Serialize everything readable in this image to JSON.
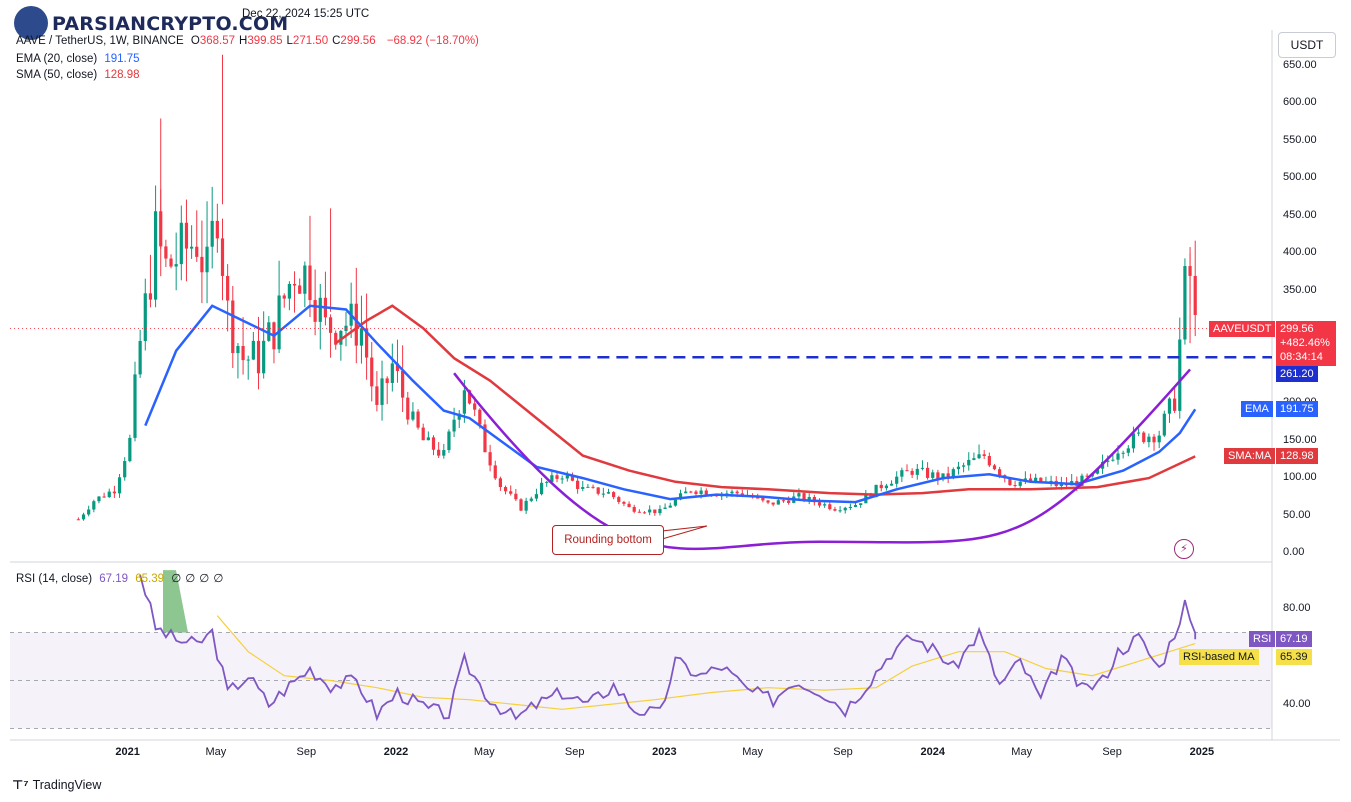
{
  "watermark": {
    "brand": "PARSIANCRYPTO.COM"
  },
  "header": {
    "date": "Dec 22, 2024 15:25 UTC",
    "symbol_line": "AAVE / TetherUS, 1W, BINANCE",
    "ohlc": [
      {
        "k": "O",
        "v": "368.57",
        "color": "#f23645"
      },
      {
        "k": "H",
        "v": "399.85",
        "color": "#f23645"
      },
      {
        "k": "L",
        "v": "271.50",
        "color": "#f23645"
      },
      {
        "k": "C",
        "v": "299.56",
        "color": "#f23645"
      }
    ],
    "change": "−68.92 (−18.70%)",
    "ema_label": "EMA (20, close)",
    "ema_value": "191.75",
    "sma_label": "SMA (50, close)",
    "sma_value": "128.98"
  },
  "rsi_header": {
    "label": "RSI (14, close)",
    "rsi": "67.19",
    "ma": "65.39",
    "extras": [
      "∅",
      "∅",
      "∅",
      "∅"
    ]
  },
  "currency": "USDT",
  "annotation": {
    "text": "Rounding bottom"
  },
  "colors": {
    "up": "#089981",
    "down": "#f23645",
    "ema": "#2962ff",
    "sma": "#e0393e",
    "arc": "#8a1fd6",
    "rsi": "#7e57c2",
    "rsi_ma": "#f5d03b"
  },
  "tags": {
    "symbol": "AAVEUSDT",
    "price": "299.56",
    "change_pct": "+482.46%",
    "countdown": "08:34:14",
    "level": "261.20",
    "ema_name": "EMA",
    "ema": "191.75",
    "sma_name": "SMA:MA",
    "sma": "128.98",
    "rsi_name": "RSI",
    "rsi": "67.19",
    "rsi_ma_name": "RSI-based MA",
    "rsi_ma": "65.39"
  },
  "chart_data": {
    "type": "candlestick",
    "price_axis": {
      "ticks": [
        "650.00",
        "600.00",
        "550.00",
        "500.00",
        "450.00",
        "400.00",
        "350.00",
        "300.00",
        "200.00",
        "150.00",
        "100.00",
        "50.00",
        "0.00"
      ],
      "ylim": [
        0,
        690
      ]
    },
    "rsi_axis": {
      "ticks": [
        "80.00",
        "40.00"
      ],
      "bands": [
        70,
        50,
        30
      ]
    },
    "time_axis": {
      "labels": [
        {
          "t": "2021",
          "year": true
        },
        {
          "t": "May",
          "year": false
        },
        {
          "t": "Sep",
          "year": false
        },
        {
          "t": "2022",
          "year": true
        },
        {
          "t": "May",
          "year": false
        },
        {
          "t": "Sep",
          "year": false
        },
        {
          "t": "2023",
          "year": true
        },
        {
          "t": "May",
          "year": false
        },
        {
          "t": "Sep",
          "year": false
        },
        {
          "t": "2024",
          "year": true
        },
        {
          "t": "May",
          "year": false
        },
        {
          "t": "Sep",
          "year": false
        },
        {
          "t": "2025",
          "year": true
        }
      ],
      "range": [
        "2020-10",
        "2025-04"
      ]
    },
    "horizontal_level": 261.2,
    "price_anchors": [
      [
        "2020-10-26",
        45
      ],
      [
        "2020-11-16",
        70
      ],
      [
        "2020-12-14",
        85
      ],
      [
        "2021-01-04",
        150
      ],
      [
        "2021-01-18",
        280
      ],
      [
        "2021-02-08",
        420
      ],
      [
        "2021-02-22",
        380
      ],
      [
        "2021-03-15",
        400
      ],
      [
        "2021-04-05",
        420
      ],
      [
        "2021-04-19",
        370
      ],
      [
        "2021-05-03",
        470
      ],
      [
        "2021-05-17",
        320
      ],
      [
        "2021-06-07",
        260
      ],
      [
        "2021-06-28",
        260
      ],
      [
        "2021-07-19",
        300
      ],
      [
        "2021-08-16",
        380
      ],
      [
        "2021-09-06",
        370
      ],
      [
        "2021-09-27",
        300
      ],
      [
        "2021-10-18",
        310
      ],
      [
        "2021-11-15",
        300
      ],
      [
        "2021-12-06",
        190
      ],
      [
        "2021-12-27",
        250
      ],
      [
        "2022-01-17",
        190
      ],
      [
        "2022-02-07",
        150
      ],
      [
        "2022-03-07",
        130
      ],
      [
        "2022-04-04",
        230
      ],
      [
        "2022-05-02",
        140
      ],
      [
        "2022-05-23",
        90
      ],
      [
        "2022-06-20",
        60
      ],
      [
        "2022-07-18",
        90
      ],
      [
        "2022-08-15",
        105
      ],
      [
        "2022-09-12",
        85
      ],
      [
        "2022-10-17",
        80
      ],
      [
        "2022-11-14",
        60
      ],
      [
        "2022-12-26",
        55
      ],
      [
        "2023-02-06",
        85
      ],
      [
        "2023-03-13",
        80
      ],
      [
        "2023-04-17",
        80
      ],
      [
        "2023-05-22",
        65
      ],
      [
        "2023-07-03",
        75
      ],
      [
        "2023-08-21",
        60
      ],
      [
        "2023-09-18",
        65
      ],
      [
        "2023-10-30",
        95
      ],
      [
        "2023-12-04",
        110
      ],
      [
        "2024-01-15",
        100
      ],
      [
        "2024-02-19",
        120
      ],
      [
        "2024-03-11",
        130
      ],
      [
        "2024-04-15",
        95
      ],
      [
        "2024-05-27",
        95
      ],
      [
        "2024-06-24",
        90
      ],
      [
        "2024-08-05",
        100
      ],
      [
        "2024-09-09",
        140
      ],
      [
        "2024-10-07",
        155
      ],
      [
        "2024-11-04",
        160
      ],
      [
        "2024-11-25",
        210
      ],
      [
        "2024-12-09",
        350
      ],
      [
        "2024-12-16",
        369
      ],
      [
        "2024-12-23",
        300
      ]
    ],
    "ema_anchors": [
      [
        "2021-01-25",
        170
      ],
      [
        "2021-03-08",
        270
      ],
      [
        "2021-04-26",
        330
      ],
      [
        "2021-06-07",
        310
      ],
      [
        "2021-07-19",
        290
      ],
      [
        "2021-09-06",
        330
      ],
      [
        "2021-10-25",
        325
      ],
      [
        "2021-12-06",
        280
      ],
      [
        "2022-01-24",
        230
      ],
      [
        "2022-03-07",
        190
      ],
      [
        "2022-04-11",
        180
      ],
      [
        "2022-05-23",
        150
      ],
      [
        "2022-07-11",
        115
      ],
      [
        "2022-09-12",
        100
      ],
      [
        "2022-11-07",
        85
      ],
      [
        "2023-01-09",
        72
      ],
      [
        "2023-03-13",
        78
      ],
      [
        "2023-05-15",
        75
      ],
      [
        "2023-07-17",
        70
      ],
      [
        "2023-09-18",
        68
      ],
      [
        "2023-11-13",
        85
      ],
      [
        "2024-01-15",
        100
      ],
      [
        "2024-03-18",
        105
      ],
      [
        "2024-05-13",
        95
      ],
      [
        "2024-07-15",
        92
      ],
      [
        "2024-09-16",
        110
      ],
      [
        "2024-11-04",
        135
      ],
      [
        "2024-12-02",
        160
      ],
      [
        "2024-12-23",
        191.75
      ]
    ],
    "sma_anchors": [
      [
        "2021-10-11",
        280
      ],
      [
        "2021-11-22",
        310
      ],
      [
        "2021-12-27",
        330
      ],
      [
        "2022-02-07",
        300
      ],
      [
        "2022-03-21",
        260
      ],
      [
        "2022-05-09",
        230
      ],
      [
        "2022-07-11",
        180
      ],
      [
        "2022-09-12",
        130
      ],
      [
        "2022-11-14",
        110
      ],
      [
        "2023-01-16",
        95
      ],
      [
        "2023-03-20",
        88
      ],
      [
        "2023-05-22",
        85
      ],
      [
        "2023-08-14",
        80
      ],
      [
        "2023-10-16",
        78
      ],
      [
        "2023-12-18",
        80
      ],
      [
        "2024-02-19",
        85
      ],
      [
        "2024-05-13",
        85
      ],
      [
        "2024-08-12",
        88
      ],
      [
        "2024-10-21",
        100
      ],
      [
        "2024-12-23",
        128.98
      ]
    ],
    "arc": {
      "from": [
        "2022-03-21",
        240
      ],
      "bottom": [
        "2023-07-31",
        15
      ],
      "to": [
        "2024-12-16",
        245
      ]
    },
    "rsi_anchors": [
      [
        "2021-01-18",
        95
      ],
      [
        "2021-02-08",
        72
      ],
      [
        "2021-03-08",
        67
      ],
      [
        "2021-04-05",
        65
      ],
      [
        "2021-04-26",
        70
      ],
      [
        "2021-05-17",
        45
      ],
      [
        "2021-06-14",
        52
      ],
      [
        "2021-07-12",
        40
      ],
      [
        "2021-08-09",
        48
      ],
      [
        "2021-09-06",
        55
      ],
      [
        "2021-10-04",
        48
      ],
      [
        "2021-11-08",
        50
      ],
      [
        "2021-12-06",
        36
      ],
      [
        "2022-01-03",
        45
      ],
      [
        "2022-02-14",
        38
      ],
      [
        "2022-03-14",
        36
      ],
      [
        "2022-04-04",
        58
      ],
      [
        "2022-05-09",
        42
      ],
      [
        "2022-06-13",
        34
      ],
      [
        "2022-07-11",
        40
      ],
      [
        "2022-08-15",
        45
      ],
      [
        "2022-09-19",
        40
      ],
      [
        "2022-10-24",
        48
      ],
      [
        "2022-11-21",
        38
      ],
      [
        "2022-12-26",
        36
      ],
      [
        "2023-01-16",
        58
      ],
      [
        "2023-02-20",
        52
      ],
      [
        "2023-03-20",
        56
      ],
      [
        "2023-04-24",
        46
      ],
      [
        "2023-05-29",
        42
      ],
      [
        "2023-06-26",
        50
      ],
      [
        "2023-07-31",
        46
      ],
      [
        "2023-09-04",
        38
      ],
      [
        "2023-10-02",
        48
      ],
      [
        "2023-11-06",
        62
      ],
      [
        "2023-12-04",
        68
      ],
      [
        "2024-01-08",
        62
      ],
      [
        "2024-01-29",
        55
      ],
      [
        "2024-03-04",
        70
      ],
      [
        "2024-04-01",
        48
      ],
      [
        "2024-04-29",
        58
      ],
      [
        "2024-05-27",
        42
      ],
      [
        "2024-06-24",
        60
      ],
      [
        "2024-07-22",
        46
      ],
      [
        "2024-08-19",
        50
      ],
      [
        "2024-09-09",
        62
      ],
      [
        "2024-10-07",
        68
      ],
      [
        "2024-11-04",
        55
      ],
      [
        "2024-11-25",
        70
      ],
      [
        "2024-12-09",
        82
      ],
      [
        "2024-12-23",
        67.19
      ]
    ],
    "rsi_ma_anchors": [
      [
        "2021-05-03",
        77
      ],
      [
        "2021-06-14",
        62
      ],
      [
        "2021-08-02",
        52
      ],
      [
        "2021-10-04",
        50
      ],
      [
        "2021-12-06",
        47
      ],
      [
        "2022-02-07",
        43
      ],
      [
        "2022-04-11",
        42
      ],
      [
        "2022-06-13",
        40
      ],
      [
        "2022-08-15",
        38
      ],
      [
        "2022-10-17",
        40
      ],
      [
        "2022-12-19",
        42
      ],
      [
        "2023-03-06",
        45
      ],
      [
        "2023-05-22",
        47
      ],
      [
        "2023-08-07",
        46
      ],
      [
        "2023-10-16",
        47
      ],
      [
        "2023-12-04",
        56
      ],
      [
        "2024-02-05",
        62
      ],
      [
        "2024-04-08",
        62
      ],
      [
        "2024-06-03",
        55
      ],
      [
        "2024-08-05",
        52
      ],
      [
        "2024-10-07",
        58
      ],
      [
        "2024-12-23",
        65.39
      ]
    ]
  }
}
